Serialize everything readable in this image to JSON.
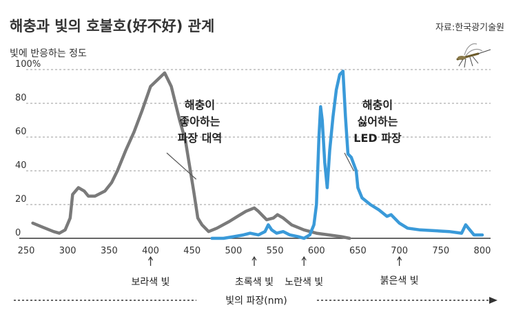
{
  "chart_data": {
    "type": "line",
    "title": "해충과 빛의 호불호(好不好) 관계",
    "source": "자료:한국광기술원",
    "ylabel": "빛에 반응하는 정도",
    "xlabel": "빛의 파장(nm)",
    "xlim": [
      250,
      810
    ],
    "ylim": [
      0,
      100
    ],
    "x_ticks": [
      "250",
      "300",
      "350",
      "400",
      "450",
      "500",
      "550",
      "600",
      "650",
      "700",
      "750",
      "800"
    ],
    "y_ticks": [
      "0",
      "20",
      "40",
      "60",
      "80",
      "100%"
    ],
    "grid": true,
    "series": [
      {
        "color": "#7a7a7a",
        "points": [
          [
            258,
            9
          ],
          [
            268,
            7
          ],
          [
            283,
            4
          ],
          [
            290,
            3
          ],
          [
            297,
            5
          ],
          [
            303,
            12
          ],
          [
            306,
            26
          ],
          [
            313,
            30
          ],
          [
            320,
            28
          ],
          [
            325,
            25
          ],
          [
            333,
            25
          ],
          [
            345,
            28
          ],
          [
            353,
            33
          ],
          [
            360,
            40
          ],
          [
            370,
            52
          ],
          [
            380,
            63
          ],
          [
            390,
            76
          ],
          [
            400,
            90
          ],
          [
            417,
            98
          ],
          [
            425,
            90
          ],
          [
            435,
            70
          ],
          [
            442,
            58
          ],
          [
            448,
            40
          ],
          [
            452,
            28
          ],
          [
            457,
            12
          ],
          [
            462,
            8
          ],
          [
            470,
            4
          ],
          [
            480,
            6
          ],
          [
            495,
            10
          ],
          [
            505,
            13
          ],
          [
            515,
            16
          ],
          [
            525,
            18
          ],
          [
            530,
            16
          ],
          [
            540,
            11
          ],
          [
            548,
            12
          ],
          [
            553,
            14
          ],
          [
            560,
            12
          ],
          [
            570,
            8
          ],
          [
            585,
            5
          ],
          [
            600,
            3
          ],
          [
            615,
            2
          ],
          [
            630,
            1
          ],
          [
            640,
            0
          ]
        ]
      },
      {
        "color": "#3a9ad9",
        "points": [
          [
            474,
            0
          ],
          [
            488,
            0
          ],
          [
            500,
            1
          ],
          [
            512,
            2
          ],
          [
            520,
            3
          ],
          [
            530,
            2
          ],
          [
            538,
            4
          ],
          [
            542,
            8
          ],
          [
            546,
            5
          ],
          [
            552,
            3
          ],
          [
            560,
            4
          ],
          [
            568,
            2
          ],
          [
            578,
            1
          ],
          [
            585,
            0
          ],
          [
            592,
            2
          ],
          [
            597,
            8
          ],
          [
            600,
            20
          ],
          [
            603,
            60
          ],
          [
            605,
            78
          ],
          [
            607,
            70
          ],
          [
            610,
            45
          ],
          [
            613,
            30
          ],
          [
            616,
            52
          ],
          [
            620,
            72
          ],
          [
            624,
            88
          ],
          [
            628,
            97
          ],
          [
            632,
            99
          ],
          [
            635,
            72
          ],
          [
            638,
            50
          ],
          [
            642,
            48
          ],
          [
            648,
            40
          ],
          [
            650,
            30
          ],
          [
            655,
            24
          ],
          [
            665,
            20
          ],
          [
            675,
            17
          ],
          [
            685,
            13
          ],
          [
            690,
            14
          ],
          [
            700,
            9
          ],
          [
            710,
            6
          ],
          [
            725,
            5
          ],
          [
            760,
            4
          ],
          [
            775,
            3
          ],
          [
            780,
            8
          ],
          [
            785,
            5
          ],
          [
            790,
            2
          ],
          [
            800,
            2
          ]
        ]
      }
    ],
    "annotations": [
      {
        "lines": [
          "해충이",
          "좋아하는",
          "파장 대역"
        ],
        "target_x": 455,
        "target_y": 35
      },
      {
        "lines": [
          "해충이",
          "싫어하는",
          "LED 파장"
        ],
        "target_x": 645,
        "target_y": 40
      }
    ],
    "bands": [
      {
        "label": "보라색 빛",
        "x": 400,
        "row": 1
      },
      {
        "label": "초록색 빛",
        "x": 525,
        "row": 1
      },
      {
        "label": "노란색 빛",
        "x": 585,
        "row": 1
      },
      {
        "label": "붉은색 빛",
        "x": 700,
        "row": 0
      }
    ]
  }
}
